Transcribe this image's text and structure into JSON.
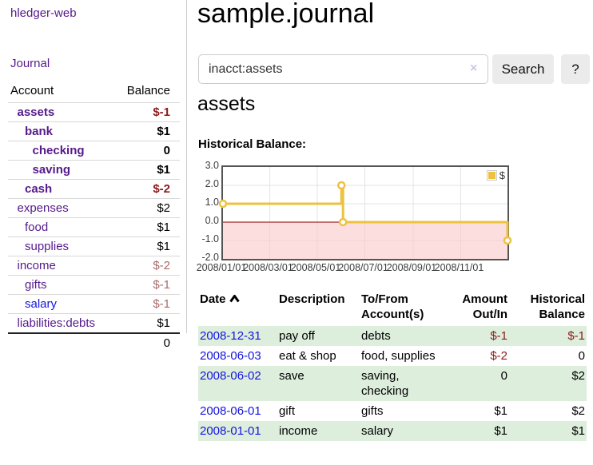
{
  "app": {
    "name": "hledger-web"
  },
  "colors": {
    "link_purple": "#551a8b",
    "link_blue": "#1515e0",
    "negative_strong": "#8b1a1a",
    "negative_soft": "#a96a6a",
    "row_highlight_green": "#ddeedd",
    "series_yellow": "#edc240",
    "negative_region_pink": "#fbc9c9",
    "zero_line_darkred": "#8b0000",
    "button_gray": "#ebebeb"
  },
  "sidebar": {
    "journal_link": "Journal",
    "accounts": {
      "headers": [
        "Account",
        "Balance"
      ],
      "rows": [
        {
          "label": "assets",
          "indent": 1,
          "bold": true,
          "balance": "$-1",
          "neg": "strong"
        },
        {
          "label": "bank",
          "indent": 2,
          "bold": true,
          "balance": "$1",
          "neg": "none"
        },
        {
          "label": "checking",
          "indent": 3,
          "bold": true,
          "balance": "0",
          "neg": "none"
        },
        {
          "label": "saving",
          "indent": 3,
          "bold": true,
          "balance": "$1",
          "neg": "none"
        },
        {
          "label": "cash",
          "indent": 2,
          "bold": true,
          "balance": "$-2",
          "neg": "strong"
        },
        {
          "label": "expenses",
          "indent": 1,
          "bold": false,
          "balance": "$2",
          "neg": "none"
        },
        {
          "label": "food",
          "indent": 2,
          "bold": false,
          "balance": "$1",
          "neg": "none"
        },
        {
          "label": "supplies",
          "indent": 2,
          "bold": false,
          "balance": "$1",
          "neg": "none"
        },
        {
          "label": "income",
          "indent": 1,
          "bold": false,
          "balance": "$-2",
          "neg": "soft"
        },
        {
          "label": "gifts",
          "indent": 2,
          "bold": false,
          "balance": "$-1",
          "neg": "soft"
        },
        {
          "label": "salary",
          "indent": 2,
          "bold": false,
          "balance": "$-1",
          "neg": "soft",
          "blue": true
        },
        {
          "label": "liabilities:debts",
          "indent": 1,
          "bold": false,
          "balance": "$1",
          "neg": "none"
        }
      ],
      "total": "0"
    }
  },
  "header": {
    "title": "sample.journal"
  },
  "search": {
    "value": "inacct:assets",
    "clear_icon": "×",
    "button_label": "Search",
    "help_label": "?"
  },
  "account_page": {
    "heading": "assets",
    "chart_label": "Historical Balance:"
  },
  "chart_data": {
    "type": "line",
    "step": true,
    "title": "Historical Balance:",
    "x_range": [
      "2008/01/01",
      "2008/12/31"
    ],
    "ylim": [
      -2,
      3
    ],
    "y_ticks": [
      {
        "label": "3.0",
        "value": 3
      },
      {
        "label": "2.0",
        "value": 2
      },
      {
        "label": "1.0",
        "value": 1
      },
      {
        "label": "0.0",
        "value": 0
      },
      {
        "label": "-1.0",
        "value": -1
      },
      {
        "label": "-2.0",
        "value": -2
      }
    ],
    "x_ticks": [
      {
        "label": "2008/01/01",
        "pos": 0.0
      },
      {
        "label": "2008/03/01",
        "pos": 0.1644
      },
      {
        "label": "2008/05/01",
        "pos": 0.3315
      },
      {
        "label": "2008/07/01",
        "pos": 0.4986
      },
      {
        "label": "2008/09/01",
        "pos": 0.6685
      },
      {
        "label": "2008/11/01",
        "pos": 0.8356
      }
    ],
    "series": [
      {
        "name": "$",
        "color": "#edc240",
        "points": [
          {
            "date": "2008/01/01",
            "x": 0.0,
            "y": 1
          },
          {
            "date": "2008/06/01",
            "x": 0.4164,
            "y": 2
          },
          {
            "date": "2008/06/03",
            "x": 0.4219,
            "y": 0
          },
          {
            "date": "2008/12/31",
            "x": 1.0,
            "y": -1
          }
        ]
      }
    ],
    "legend": {
      "label": "$",
      "position": "top-right"
    },
    "negative_region_fill": "#fbc9c9",
    "zero_line_color": "#8b0000",
    "grid": true
  },
  "register": {
    "columns": [
      "Date",
      "Description",
      "To/From Account(s)",
      "Amount Out/In",
      "Historical Balance"
    ],
    "sort_icon": "chevron-up",
    "rows": [
      {
        "date": "2008-12-31",
        "description": "pay off",
        "accounts": "debts",
        "amount": "$-1",
        "amount_neg": true,
        "balance": "$-1",
        "balance_neg": true,
        "shaded": true
      },
      {
        "date": "2008-06-03",
        "description": "eat & shop",
        "accounts": "food, supplies",
        "amount": "$-2",
        "amount_neg": true,
        "balance": "0",
        "balance_neg": false,
        "shaded": false
      },
      {
        "date": "2008-06-02",
        "description": "save",
        "accounts": "saving, checking",
        "amount": "0",
        "amount_neg": false,
        "balance": "$2",
        "balance_neg": false,
        "shaded": true
      },
      {
        "date": "2008-06-01",
        "description": "gift",
        "accounts": "gifts",
        "amount": "$1",
        "amount_neg": false,
        "balance": "$2",
        "balance_neg": false,
        "shaded": false
      },
      {
        "date": "2008-01-01",
        "description": "income",
        "accounts": "salary",
        "amount": "$1",
        "amount_neg": false,
        "balance": "$1",
        "balance_neg": false,
        "shaded": true
      }
    ]
  }
}
